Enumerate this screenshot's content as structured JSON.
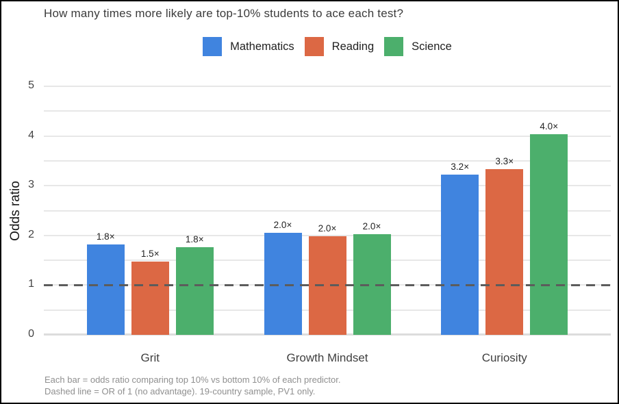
{
  "title": "How many times more likely are top-10% students to ace each test?",
  "ylabel": "Odds ratio",
  "caption": {
    "line1": "Each bar = odds ratio comparing top 10% vs bottom 10% of each predictor.",
    "line2": "Dashed line = OR of 1 (no advantage). 19-country sample, PV1 only."
  },
  "colors": {
    "mathematics": "#4084DF",
    "reading": "#DC6844",
    "science": "#4CAF6C",
    "reference_line": "#5C5C5C",
    "gridline": "#E7E7E7"
  },
  "chart_data": {
    "type": "bar",
    "title": "How many times more likely are top-10% students to ace each test?",
    "xlabel": "",
    "ylabel": "Odds ratio",
    "categories": [
      "Grit",
      "Growth Mindset",
      "Curiosity"
    ],
    "series": [
      {
        "name": "Mathematics",
        "color": "#4084DF",
        "values": [
          1.82,
          2.05,
          3.22
        ],
        "labels": [
          "1.8×",
          "2.0×",
          "3.2×"
        ]
      },
      {
        "name": "Reading",
        "color": "#DC6844",
        "values": [
          1.48,
          1.98,
          3.33
        ],
        "labels": [
          "1.5×",
          "2.0×",
          "3.3×"
        ]
      },
      {
        "name": "Science",
        "color": "#4CAF6C",
        "values": [
          1.76,
          2.02,
          4.03
        ],
        "labels": [
          "1.8×",
          "2.0×",
          "4.0×"
        ]
      }
    ],
    "ylim": [
      0,
      5
    ],
    "yticks": [
      0,
      1,
      2,
      3,
      4,
      5
    ],
    "minor_grid_step": 0.5,
    "grid": true,
    "legend_position": "top-center",
    "reference_line": {
      "y": 1,
      "style": "dashed",
      "meaning": "OR of 1 (no advantage)"
    }
  }
}
